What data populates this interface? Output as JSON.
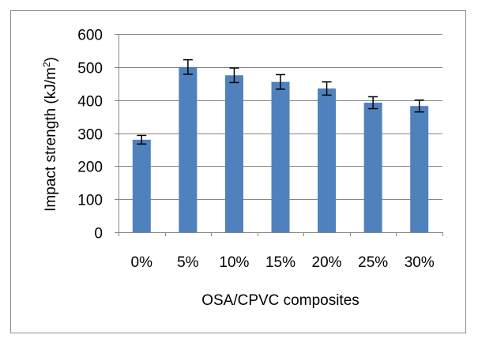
{
  "chart_data": {
    "type": "bar",
    "title": "",
    "xlabel": "OSA/CPVC composites",
    "ylabel": {
      "prefix": "Impact strength (kJ/m",
      "superscript": "2",
      "suffix": ")"
    },
    "categories": [
      "0%",
      "5%",
      "10%",
      "15%",
      "20%",
      "25%",
      "30%"
    ],
    "series": [
      {
        "values": [
          280,
          500,
          475,
          455,
          435,
          392,
          382
        ],
        "errors": [
          13,
          22,
          22,
          22,
          20,
          18,
          18
        ]
      }
    ],
    "ylim": [
      0,
      600
    ],
    "yticks": [
      0,
      100,
      200,
      300,
      400,
      500,
      600
    ],
    "grid": true,
    "legend": "none",
    "colors": {
      "bar": "#4f81bd",
      "grid": "#868686",
      "axis": "#868686",
      "error_bar": "#000000",
      "frame": "#8c8c8c"
    }
  }
}
